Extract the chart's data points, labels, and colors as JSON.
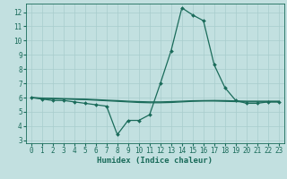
{
  "xlabel": "Humidex (Indice chaleur)",
  "background_color": "#c2e0e0",
  "grid_color": "#a8cccc",
  "line_color": "#1a6b5a",
  "xlim": [
    -0.5,
    23.5
  ],
  "ylim": [
    2.8,
    12.6
  ],
  "yticks": [
    3,
    4,
    5,
    6,
    7,
    8,
    9,
    10,
    11,
    12
  ],
  "xticks": [
    0,
    1,
    2,
    3,
    4,
    5,
    6,
    7,
    8,
    9,
    10,
    11,
    12,
    13,
    14,
    15,
    16,
    17,
    18,
    19,
    20,
    21,
    22,
    23
  ],
  "series_main": {
    "x": [
      0,
      1,
      2,
      3,
      4,
      5,
      6,
      7,
      8,
      9,
      10,
      11,
      12,
      13,
      14,
      15,
      16,
      17,
      18,
      19,
      20,
      21,
      22,
      23
    ],
    "y": [
      6.0,
      5.9,
      5.8,
      5.8,
      5.7,
      5.6,
      5.5,
      5.4,
      3.4,
      4.4,
      4.4,
      4.8,
      7.0,
      9.3,
      12.3,
      11.8,
      11.4,
      8.3,
      6.7,
      5.8,
      5.6,
      5.6,
      5.7,
      5.7
    ],
    "color": "#1a6b5a",
    "linewidth": 0.9,
    "marker": "D",
    "markersize": 2.0
  },
  "series_flat1": {
    "x": [
      0,
      1,
      2,
      3,
      4,
      5,
      6,
      7,
      8,
      9,
      10,
      11,
      12,
      13,
      14,
      15,
      16,
      17,
      18,
      19,
      20,
      21,
      22,
      23
    ],
    "y": [
      6.0,
      5.95,
      5.92,
      5.9,
      5.88,
      5.86,
      5.82,
      5.78,
      5.74,
      5.7,
      5.66,
      5.64,
      5.64,
      5.66,
      5.7,
      5.74,
      5.76,
      5.76,
      5.74,
      5.72,
      5.7,
      5.7,
      5.7,
      5.7
    ],
    "color": "#1a6b5a",
    "linewidth": 0.9
  },
  "series_flat2": {
    "x": [
      0,
      1,
      2,
      3,
      4,
      5,
      6,
      7,
      8,
      9,
      10,
      11,
      12,
      13,
      14,
      15,
      16,
      17,
      18,
      19,
      20,
      21,
      22,
      23
    ],
    "y": [
      6.0,
      5.97,
      5.95,
      5.93,
      5.91,
      5.89,
      5.86,
      5.82,
      5.79,
      5.75,
      5.72,
      5.7,
      5.7,
      5.72,
      5.75,
      5.78,
      5.79,
      5.8,
      5.79,
      5.77,
      5.75,
      5.75,
      5.75,
      5.75
    ],
    "color": "#1a6b5a",
    "linewidth": 0.9
  },
  "tick_fontsize": 5.5,
  "xlabel_fontsize": 6.5
}
